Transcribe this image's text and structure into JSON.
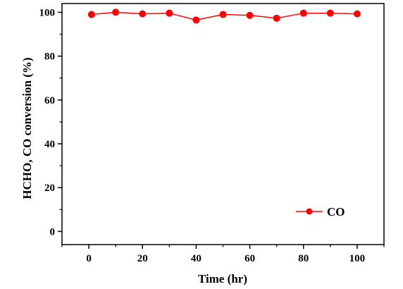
{
  "chart_data": {
    "type": "line",
    "title": "",
    "xlabel": "Time (hr)",
    "ylabel": "HCHO, CO conversion (%)",
    "xlim": [
      -10,
      110
    ],
    "ylim": [
      -6,
      104
    ],
    "xticks": [
      0,
      20,
      40,
      60,
      80,
      100
    ],
    "yticks": [
      0,
      20,
      40,
      60,
      80,
      100
    ],
    "grid": false,
    "legend_position": "lower-right",
    "series": [
      {
        "name": "CO",
        "color": "#ff0000",
        "marker": "circle",
        "x": [
          1,
          10,
          20,
          30,
          40,
          50,
          60,
          70,
          80,
          90,
          100
        ],
        "y": [
          99.0,
          100.0,
          99.3,
          99.6,
          96.5,
          99.0,
          98.6,
          97.3,
          99.6,
          99.6,
          99.3
        ]
      }
    ]
  }
}
